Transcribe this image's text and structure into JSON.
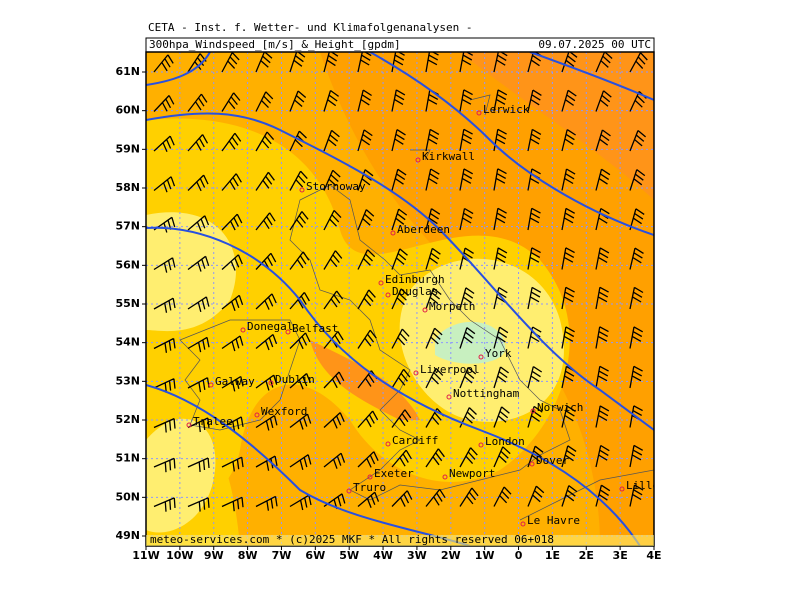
{
  "header": {
    "line1": "CETA - Inst. f. Wetter- und Klimafolgenanalysen -",
    "title": "300hpa_Windspeed_[m/s]_&_Height_[gpdm]",
    "date": "09.07.2025 00 UTC"
  },
  "lon_ticks": [
    {
      "value": -11,
      "label": "11W"
    },
    {
      "value": -10,
      "label": "10W"
    },
    {
      "value": -9,
      "label": "9W"
    },
    {
      "value": -8,
      "label": "8W"
    },
    {
      "value": -7,
      "label": "7W"
    },
    {
      "value": -6,
      "label": "6W"
    },
    {
      "value": -5,
      "label": "5W"
    },
    {
      "value": -4,
      "label": "4W"
    },
    {
      "value": -3,
      "label": "3W"
    },
    {
      "value": -2,
      "label": "2W"
    },
    {
      "value": -1,
      "label": "1W"
    },
    {
      "value": 0,
      "label": "0"
    },
    {
      "value": 1,
      "label": "1E"
    },
    {
      "value": 2,
      "label": "2E"
    },
    {
      "value": 3,
      "label": "3E"
    },
    {
      "value": 4,
      "label": "4E"
    }
  ],
  "lat_ticks": [
    {
      "value": 49,
      "label": "49N"
    },
    {
      "value": 50,
      "label": "50N"
    },
    {
      "value": 51,
      "label": "51N"
    },
    {
      "value": 52,
      "label": "52N"
    },
    {
      "value": 53,
      "label": "53N"
    },
    {
      "value": 54,
      "label": "54N"
    },
    {
      "value": 55,
      "label": "55N"
    },
    {
      "value": 56,
      "label": "56N"
    },
    {
      "value": 57,
      "label": "57N"
    },
    {
      "value": 58,
      "label": "58N"
    },
    {
      "value": 59,
      "label": "59N"
    },
    {
      "value": 60,
      "label": "60N"
    },
    {
      "value": 61,
      "label": "61N"
    }
  ],
  "cities": [
    "Lerwick",
    "Kirkwall",
    "Stornoway",
    "Aberdeen",
    "Edinburgh",
    "Douglas",
    "Morpeth",
    "Donegal",
    "Belfast",
    "York",
    "Galway",
    "Dublin",
    "Liverpool",
    "Nottingham",
    "Wexford",
    "Tralee",
    "Norwich",
    "Cardiff",
    "London",
    "Dover",
    "Exeter",
    "Newport",
    "Truro",
    "Le Havre",
    "Lille"
  ],
  "footer": "meteo-services.com * (c)2025 MKF * All rights reserved 06+018"
}
